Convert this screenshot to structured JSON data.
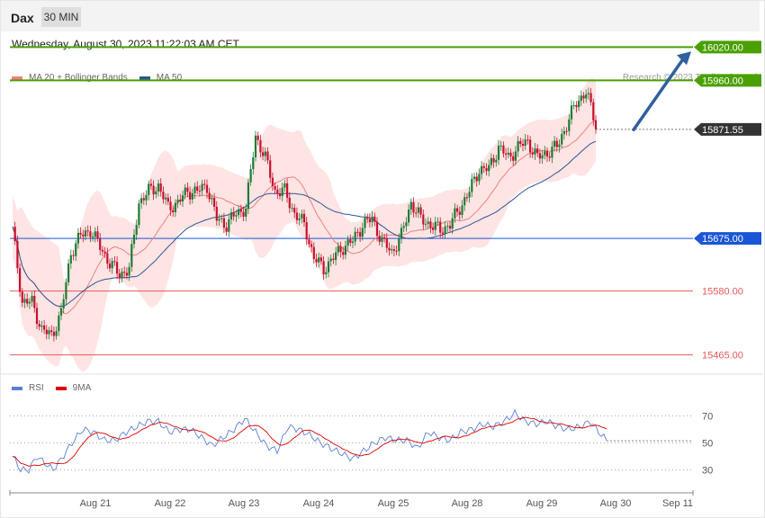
{
  "header": {
    "symbol": "Dax",
    "timeframe": "30 MIN",
    "datetime": "Wednesday, August 30, 2023 11:22:03 AM CET"
  },
  "legend": {
    "ma20_label": "MA 20 + Bollinger Bands",
    "ma20_color": "#f08080",
    "ma50_label": "MA 50",
    "ma50_color": "#2f5597"
  },
  "credit": "Research © 2023 Trading Central",
  "rsi_legend": {
    "rsi_label": "RSI",
    "rsi_color": "#5b7fd6",
    "ma_label": "9MA",
    "ma_color": "#e00000"
  },
  "colors": {
    "up_candle": "#1e7b34",
    "down_candle": "#c8102e",
    "band_fill": "#ffe4e4",
    "resistance": "#4aa000",
    "support": "#e65a5a",
    "pivot": "#1a55d6",
    "arrow": "#2f5f9e",
    "current": "#333333"
  },
  "chart_data": [
    {
      "type": "candlestick",
      "x_labels": [
        "Aug 21",
        "Aug 22",
        "Aug 23",
        "Aug 24",
        "Aug 25",
        "Aug 28",
        "Aug 29",
        "Aug 30",
        "Sep 11"
      ],
      "ylim": [
        15440,
        16040
      ],
      "levels": [
        {
          "label": "16020.00",
          "value": 16020,
          "kind": "resistance"
        },
        {
          "label": "15960.00",
          "value": 15960,
          "kind": "resistance"
        },
        {
          "label": "15871.55",
          "value": 15871.55,
          "kind": "current"
        },
        {
          "label": "15675.00",
          "value": 15675,
          "kind": "pivot"
        },
        {
          "label": "15580.00",
          "value": 15580,
          "kind": "support"
        },
        {
          "label": "15465.00",
          "value": 15465,
          "kind": "support"
        }
      ],
      "forecast_arrow": {
        "from": 15871,
        "to": 16012
      },
      "close_anchors": [
        [
          0,
          15690
        ],
        [
          4,
          15560
        ],
        [
          8,
          15560
        ],
        [
          12,
          15510
        ],
        [
          16,
          15500
        ],
        [
          20,
          15540
        ],
        [
          24,
          15650
        ],
        [
          28,
          15680
        ],
        [
          32,
          15690
        ],
        [
          36,
          15660
        ],
        [
          40,
          15630
        ],
        [
          44,
          15610
        ],
        [
          48,
          15620
        ],
        [
          52,
          15740
        ],
        [
          56,
          15760
        ],
        [
          60,
          15770
        ],
        [
          64,
          15730
        ],
        [
          68,
          15740
        ],
        [
          72,
          15760
        ],
        [
          76,
          15760
        ],
        [
          80,
          15770
        ],
        [
          84,
          15710
        ],
        [
          88,
          15700
        ],
        [
          92,
          15720
        ],
        [
          96,
          15730
        ],
        [
          100,
          15860
        ],
        [
          104,
          15820
        ],
        [
          108,
          15760
        ],
        [
          112,
          15760
        ],
        [
          116,
          15720
        ],
        [
          120,
          15700
        ],
        [
          124,
          15640
        ],
        [
          128,
          15620
        ],
        [
          132,
          15640
        ],
        [
          136,
          15660
        ],
        [
          140,
          15670
        ],
        [
          144,
          15700
        ],
        [
          148,
          15710
        ],
        [
          152,
          15670
        ],
        [
          156,
          15650
        ],
        [
          160,
          15680
        ],
        [
          164,
          15740
        ],
        [
          168,
          15710
        ],
        [
          172,
          15700
        ],
        [
          176,
          15690
        ],
        [
          180,
          15700
        ],
        [
          184,
          15730
        ],
        [
          188,
          15760
        ],
        [
          192,
          15800
        ],
        [
          196,
          15800
        ],
        [
          200,
          15840
        ],
        [
          204,
          15820
        ],
        [
          208,
          15840
        ],
        [
          212,
          15850
        ],
        [
          216,
          15820
        ],
        [
          220,
          15830
        ],
        [
          224,
          15840
        ],
        [
          228,
          15880
        ],
        [
          232,
          15920
        ],
        [
          236,
          15940
        ],
        [
          240,
          15880
        ]
      ]
    },
    {
      "type": "line",
      "title": "RSI",
      "y_ticks": [
        70,
        50,
        30
      ],
      "ylim": [
        15,
        85
      ],
      "rsi_anchors": [
        [
          0,
          40
        ],
        [
          3,
          30
        ],
        [
          6,
          30
        ],
        [
          9,
          40
        ],
        [
          12,
          35
        ],
        [
          15,
          30
        ],
        [
          18,
          38
        ],
        [
          22,
          50
        ],
        [
          26,
          60
        ],
        [
          30,
          58
        ],
        [
          34,
          52
        ],
        [
          38,
          52
        ],
        [
          42,
          58
        ],
        [
          46,
          62
        ],
        [
          50,
          66
        ],
        [
          54,
          66
        ],
        [
          58,
          58
        ],
        [
          62,
          60
        ],
        [
          66,
          60
        ],
        [
          70,
          54
        ],
        [
          74,
          48
        ],
        [
          78,
          54
        ],
        [
          82,
          60
        ],
        [
          86,
          68
        ],
        [
          90,
          58
        ],
        [
          94,
          48
        ],
        [
          98,
          44
        ],
        [
          102,
          62
        ],
        [
          106,
          60
        ],
        [
          110,
          56
        ],
        [
          114,
          50
        ],
        [
          118,
          46
        ],
        [
          122,
          42
        ],
        [
          126,
          38
        ],
        [
          130,
          44
        ],
        [
          134,
          50
        ],
        [
          138,
          54
        ],
        [
          142,
          52
        ],
        [
          146,
          52
        ],
        [
          150,
          46
        ],
        [
          154,
          58
        ],
        [
          158,
          54
        ],
        [
          162,
          52
        ],
        [
          166,
          58
        ],
        [
          170,
          60
        ],
        [
          174,
          64
        ],
        [
          178,
          62
        ],
        [
          182,
          66
        ],
        [
          186,
          72
        ],
        [
          190,
          66
        ],
        [
          194,
          64
        ],
        [
          198,
          66
        ],
        [
          202,
          62
        ],
        [
          206,
          60
        ],
        [
          210,
          62
        ],
        [
          214,
          66
        ],
        [
          218,
          56
        ],
        [
          220,
          52
        ]
      ]
    }
  ]
}
